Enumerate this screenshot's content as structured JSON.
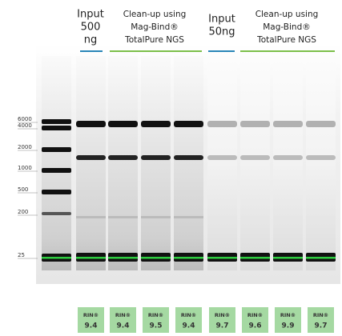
{
  "headers": [
    {
      "lines": [
        "Input",
        "500",
        "ng"
      ]
    },
    {
      "lines": [
        "Clean-up using",
        "Mag-Bind®",
        "TotalPure NGS"
      ]
    },
    {
      "lines": [
        "Input",
        "50ng"
      ]
    },
    {
      "lines": [
        "Clean-up using",
        "Mag-Bind®",
        "TotalPure NGS"
      ]
    }
  ],
  "ladder_labels": [
    "6000",
    "4000",
    "2000",
    "1000",
    "500",
    "200",
    "25"
  ],
  "rin": [
    {
      "label": "RIN®",
      "value": "9.4"
    },
    {
      "label": "RIN®",
      "value": "9.4"
    },
    {
      "label": "RIN®",
      "value": "9.5"
    },
    {
      "label": "RIN®",
      "value": "9.4"
    },
    {
      "label": "RIN®",
      "value": "9.7"
    },
    {
      "label": "RIN®",
      "value": "9.6"
    },
    {
      "label": "RIN®",
      "value": "9.9"
    },
    {
      "label": "RIN®",
      "value": "9.7"
    }
  ]
}
